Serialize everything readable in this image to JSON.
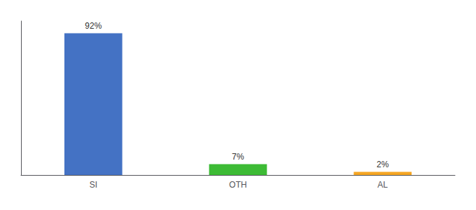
{
  "chart_data": {
    "type": "bar",
    "categories": [
      "SI",
      "OTH",
      "AL"
    ],
    "values": [
      92,
      7,
      2
    ],
    "value_labels": [
      "92%",
      "7%",
      "2%"
    ],
    "data_labels": true,
    "colors": [
      "#4472c4",
      "#3dbb35",
      "#f5a623"
    ],
    "ylim": [
      0,
      100
    ],
    "grid": false,
    "tick_labels": "x"
  }
}
